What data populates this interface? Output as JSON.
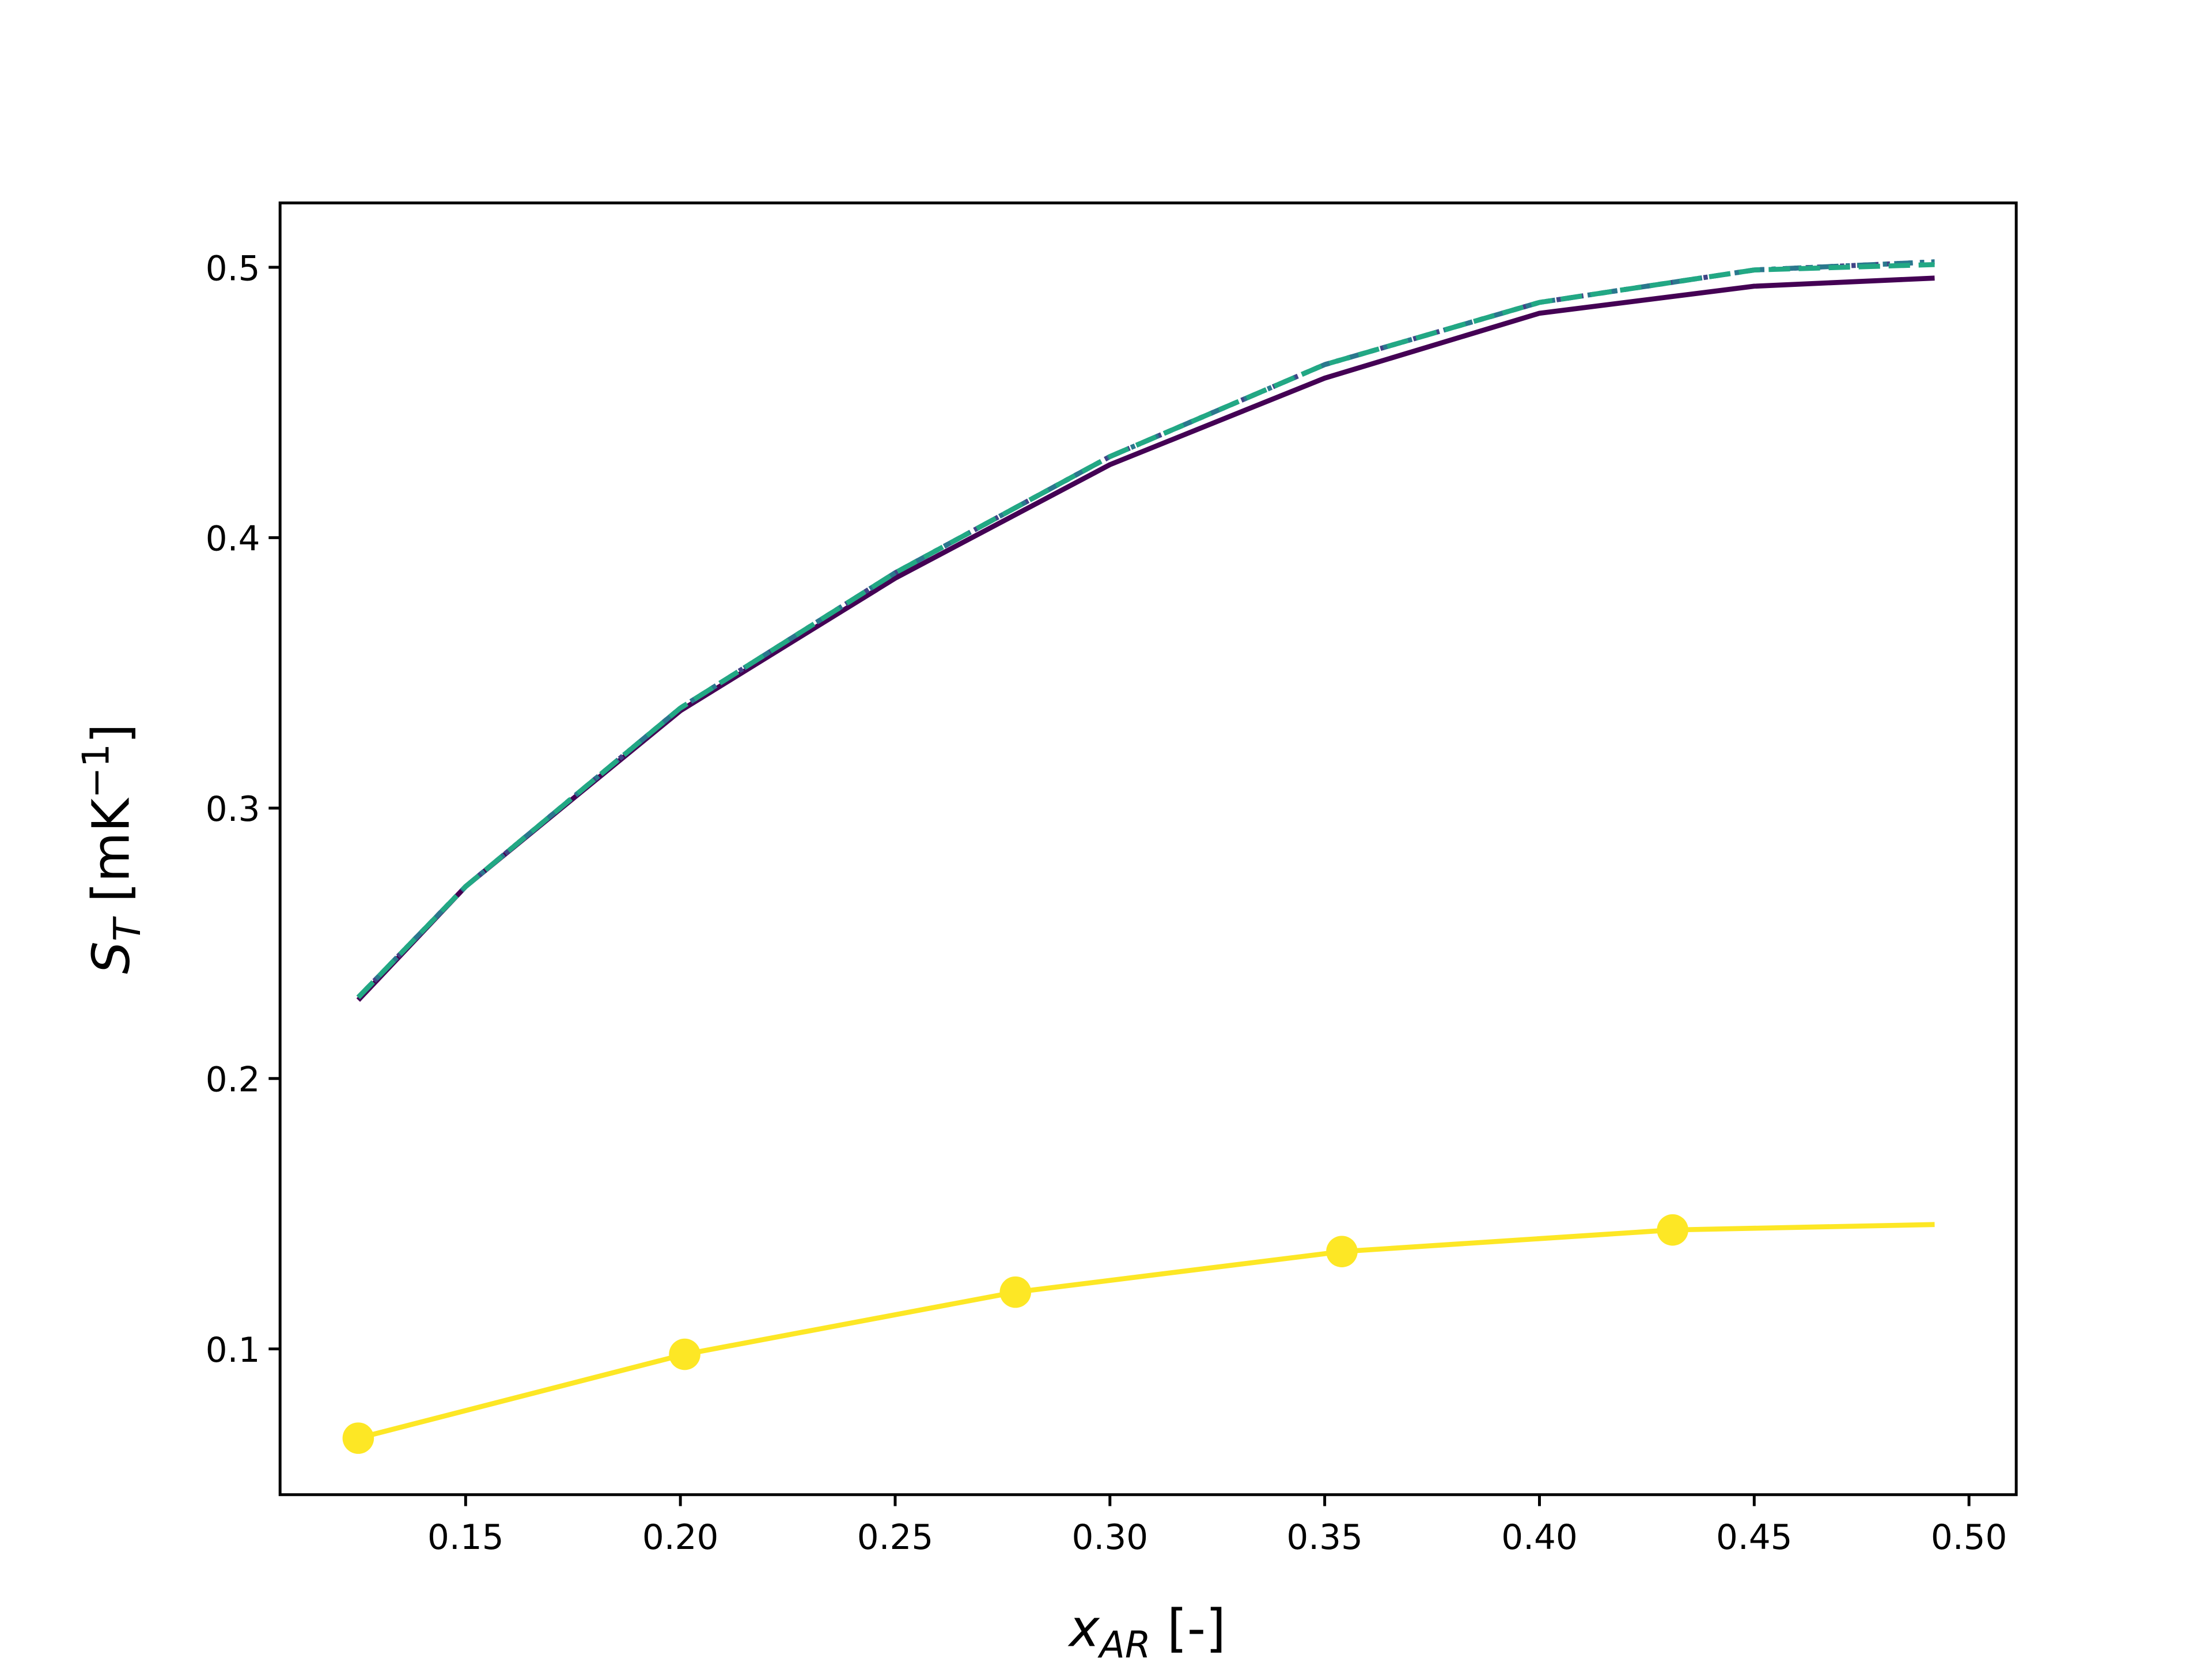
{
  "chart_data": {
    "type": "line",
    "xlabel": {
      "main": "x",
      "sub": "AR",
      "rest": " [-]"
    },
    "ylabel": {
      "main": "S",
      "sub": "T",
      "rest": " [mK",
      "sup": "−1",
      "end": "]"
    },
    "xlim": [
      0.1068,
      0.511
    ],
    "ylim": [
      0.0461,
      0.5238
    ],
    "xticks": [
      0.15,
      {
        "value": 0.2,
        "label": "0.20"
      },
      0.25,
      {
        "value": 0.3,
        "label": "0.30"
      },
      0.35,
      {
        "value": 0.4,
        "label": "0.40"
      },
      0.45,
      {
        "value": 0.5,
        "label": "0.50"
      }
    ],
    "yticks": [
      0.1,
      0.2,
      0.3,
      0.4,
      0.5
    ],
    "series": [
      {
        "color": "#440154",
        "linestyle": "solid",
        "marker": false,
        "x": [
          0.125,
          0.15,
          0.2,
          0.25,
          0.3,
          0.35,
          0.4,
          0.45,
          0.492
        ],
        "values": [
          0.229,
          0.271,
          0.336,
          0.385,
          0.427,
          0.459,
          0.483,
          0.493,
          0.496
        ]
      },
      {
        "color": "#414487",
        "linestyle": "dotted",
        "marker": false,
        "x": [
          0.125,
          0.15,
          0.2,
          0.25,
          0.3,
          0.35,
          0.4,
          0.45,
          0.492
        ],
        "values": [
          0.23,
          0.271,
          0.337,
          0.387,
          0.43,
          0.464,
          0.487,
          0.499,
          0.502
        ]
      },
      {
        "color": "#2a788e",
        "linestyle": "dashdot",
        "marker": false,
        "x": [
          0.125,
          0.15,
          0.2,
          0.25,
          0.3,
          0.35,
          0.4,
          0.45,
          0.492
        ],
        "values": [
          0.23,
          0.271,
          0.337,
          0.387,
          0.43,
          0.464,
          0.487,
          0.499,
          0.502
        ]
      },
      {
        "color": "#22a884",
        "linestyle": "dashed",
        "marker": false,
        "x": [
          0.125,
          0.15,
          0.2,
          0.25,
          0.3,
          0.35,
          0.4,
          0.45,
          0.492
        ],
        "values": [
          0.23,
          0.271,
          0.337,
          0.387,
          0.43,
          0.464,
          0.487,
          0.499,
          0.501
        ]
      },
      {
        "color": "#fde725",
        "linestyle": "solid",
        "marker": false,
        "x": [
          0.125,
          0.201,
          0.278,
          0.354,
          0.431,
          0.492
        ],
        "values": [
          0.067,
          0.098,
          0.121,
          0.136,
          0.144,
          0.146
        ]
      },
      {
        "color": "#fde725",
        "linestyle": "none",
        "marker": true,
        "x": [
          0.125,
          0.201,
          0.278,
          0.354,
          0.431
        ],
        "values": [
          0.067,
          0.098,
          0.121,
          0.136,
          0.144
        ]
      }
    ]
  }
}
